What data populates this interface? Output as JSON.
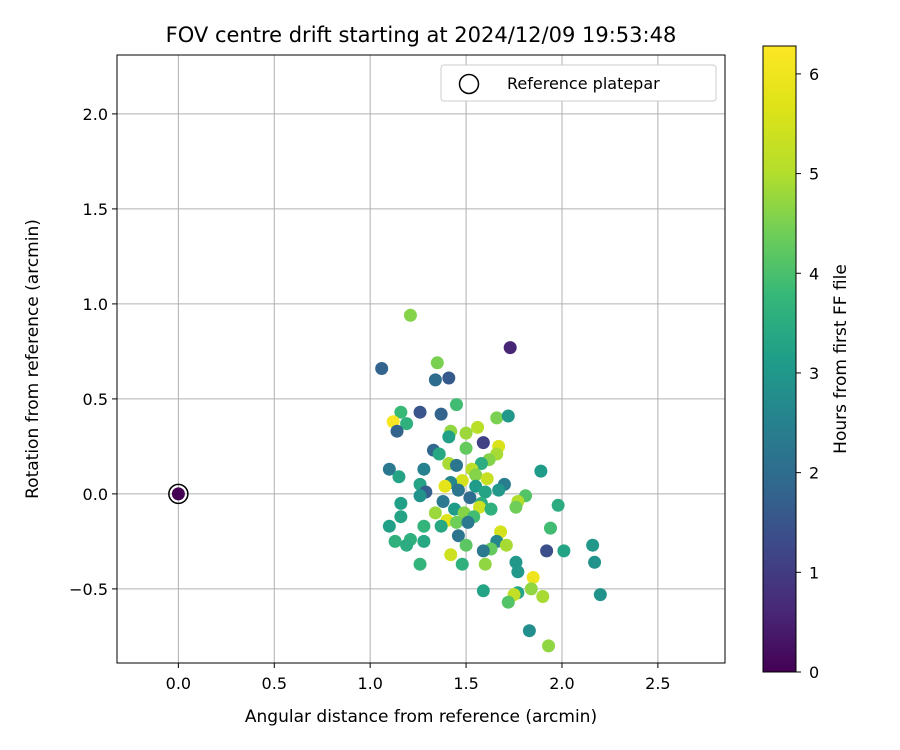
{
  "chart_data": {
    "type": "scatter",
    "title": "FOV centre drift starting at 2024/12/09 19:53:48",
    "xlabel": "Angular distance from reference (arcmin)",
    "ylabel": "Rotation from reference (arcmin)",
    "xlim": [
      -0.32,
      2.85
    ],
    "ylim": [
      -0.89,
      2.31
    ],
    "x_ticks": [
      0.0,
      0.5,
      1.0,
      1.5,
      2.0,
      2.5
    ],
    "x_tick_labels": [
      "0.0",
      "0.5",
      "1.0",
      "1.5",
      "2.0",
      "2.5"
    ],
    "y_ticks": [
      -0.5,
      0.0,
      0.5,
      1.0,
      1.5,
      2.0
    ],
    "y_tick_labels": [
      "−0.5",
      "0.0",
      "0.5",
      "1.0",
      "1.5",
      "2.0"
    ],
    "grid": true,
    "legend": {
      "placement": "top-right",
      "entries": [
        "Reference platepar"
      ]
    },
    "colorbar": {
      "label": "Hours from first FF file",
      "range": [
        0,
        6.28
      ],
      "ticks": [
        0,
        1,
        2,
        3,
        4,
        5,
        6
      ],
      "tick_labels": [
        "0",
        "1",
        "2",
        "3",
        "4",
        "5",
        "6"
      ],
      "colormap": "viridis"
    },
    "reference_point": {
      "x": 0.0,
      "y": 0.0,
      "c": 0.0
    },
    "points": [
      {
        "x": 1.21,
        "y": 0.94,
        "c": 4.6
      },
      {
        "x": 1.73,
        "y": 0.77,
        "c": 0.6
      },
      {
        "x": 1.35,
        "y": 0.69,
        "c": 4.5
      },
      {
        "x": 1.06,
        "y": 0.66,
        "c": 1.8
      },
      {
        "x": 1.34,
        "y": 0.6,
        "c": 2.0
      },
      {
        "x": 1.41,
        "y": 0.61,
        "c": 1.6
      },
      {
        "x": 1.45,
        "y": 0.47,
        "c": 3.9
      },
      {
        "x": 1.16,
        "y": 0.43,
        "c": 3.8
      },
      {
        "x": 1.26,
        "y": 0.43,
        "c": 1.5
      },
      {
        "x": 1.37,
        "y": 0.42,
        "c": 1.8
      },
      {
        "x": 1.66,
        "y": 0.4,
        "c": 4.5
      },
      {
        "x": 1.72,
        "y": 0.41,
        "c": 3.0
      },
      {
        "x": 1.12,
        "y": 0.38,
        "c": 6.2
      },
      {
        "x": 1.19,
        "y": 0.37,
        "c": 3.6
      },
      {
        "x": 1.14,
        "y": 0.33,
        "c": 1.8
      },
      {
        "x": 1.42,
        "y": 0.33,
        "c": 4.7
      },
      {
        "x": 1.5,
        "y": 0.32,
        "c": 4.8
      },
      {
        "x": 1.56,
        "y": 0.35,
        "c": 5.1
      },
      {
        "x": 1.41,
        "y": 0.3,
        "c": 3.2
      },
      {
        "x": 1.59,
        "y": 0.27,
        "c": 1.1
      },
      {
        "x": 1.67,
        "y": 0.25,
        "c": 5.6
      },
      {
        "x": 1.33,
        "y": 0.23,
        "c": 1.9
      },
      {
        "x": 1.5,
        "y": 0.24,
        "c": 4.3
      },
      {
        "x": 1.36,
        "y": 0.21,
        "c": 3.4
      },
      {
        "x": 1.66,
        "y": 0.21,
        "c": 4.9
      },
      {
        "x": 1.62,
        "y": 0.18,
        "c": 4.6
      },
      {
        "x": 1.41,
        "y": 0.16,
        "c": 4.9
      },
      {
        "x": 1.45,
        "y": 0.15,
        "c": 2.2
      },
      {
        "x": 1.58,
        "y": 0.16,
        "c": 3.5
      },
      {
        "x": 1.1,
        "y": 0.13,
        "c": 2.3
      },
      {
        "x": 1.28,
        "y": 0.13,
        "c": 2.5
      },
      {
        "x": 1.53,
        "y": 0.13,
        "c": 5.1
      },
      {
        "x": 1.55,
        "y": 0.1,
        "c": 4.6
      },
      {
        "x": 1.89,
        "y": 0.12,
        "c": 3.1
      },
      {
        "x": 1.15,
        "y": 0.09,
        "c": 3.3
      },
      {
        "x": 1.61,
        "y": 0.08,
        "c": 5.3
      },
      {
        "x": 1.48,
        "y": 0.07,
        "c": 5.5
      },
      {
        "x": 1.42,
        "y": 0.06,
        "c": 2.6
      },
      {
        "x": 1.26,
        "y": 0.05,
        "c": 3.3
      },
      {
        "x": 1.39,
        "y": 0.04,
        "c": 5.8
      },
      {
        "x": 1.55,
        "y": 0.04,
        "c": 3.1
      },
      {
        "x": 1.7,
        "y": 0.05,
        "c": 2.4
      },
      {
        "x": 1.46,
        "y": 0.02,
        "c": 2.2
      },
      {
        "x": 1.29,
        "y": 0.01,
        "c": 1.7
      },
      {
        "x": 1.26,
        "y": -0.01,
        "c": 2.9
      },
      {
        "x": 1.6,
        "y": 0.01,
        "c": 3.3
      },
      {
        "x": 1.67,
        "y": 0.02,
        "c": 3.0
      },
      {
        "x": 1.81,
        "y": -0.01,
        "c": 4.1
      },
      {
        "x": 1.52,
        "y": -0.02,
        "c": 2.0
      },
      {
        "x": 1.38,
        "y": -0.04,
        "c": 2.3
      },
      {
        "x": 1.58,
        "y": -0.05,
        "c": 3.5
      },
      {
        "x": 1.77,
        "y": -0.04,
        "c": 5.0
      },
      {
        "x": 1.16,
        "y": -0.05,
        "c": 3.2
      },
      {
        "x": 1.98,
        "y": -0.06,
        "c": 3.5
      },
      {
        "x": 1.57,
        "y": -0.07,
        "c": 5.4
      },
      {
        "x": 1.44,
        "y": -0.08,
        "c": 3.1
      },
      {
        "x": 1.63,
        "y": -0.08,
        "c": 3.6
      },
      {
        "x": 1.76,
        "y": -0.07,
        "c": 4.4
      },
      {
        "x": 1.34,
        "y": -0.1,
        "c": 4.8
      },
      {
        "x": 1.49,
        "y": -0.1,
        "c": 4.6
      },
      {
        "x": 1.16,
        "y": -0.12,
        "c": 3.3
      },
      {
        "x": 1.54,
        "y": -0.12,
        "c": 3.9
      },
      {
        "x": 1.4,
        "y": -0.14,
        "c": 5.7
      },
      {
        "x": 1.45,
        "y": -0.15,
        "c": 4.4
      },
      {
        "x": 1.51,
        "y": -0.15,
        "c": 2.3
      },
      {
        "x": 1.37,
        "y": -0.17,
        "c": 3.4
      },
      {
        "x": 1.1,
        "y": -0.17,
        "c": 3.2
      },
      {
        "x": 1.28,
        "y": -0.17,
        "c": 3.7
      },
      {
        "x": 1.94,
        "y": -0.18,
        "c": 3.9
      },
      {
        "x": 1.46,
        "y": -0.22,
        "c": 2.2
      },
      {
        "x": 1.68,
        "y": -0.2,
        "c": 5.5
      },
      {
        "x": 1.21,
        "y": -0.24,
        "c": 3.6
      },
      {
        "x": 1.13,
        "y": -0.25,
        "c": 3.6
      },
      {
        "x": 1.28,
        "y": -0.25,
        "c": 3.4
      },
      {
        "x": 1.66,
        "y": -0.25,
        "c": 2.6
      },
      {
        "x": 1.5,
        "y": -0.27,
        "c": 4.2
      },
      {
        "x": 1.71,
        "y": -0.27,
        "c": 4.9
      },
      {
        "x": 1.19,
        "y": -0.27,
        "c": 3.5
      },
      {
        "x": 1.63,
        "y": -0.29,
        "c": 4.3
      },
      {
        "x": 2.16,
        "y": -0.27,
        "c": 3.0
      },
      {
        "x": 1.59,
        "y": -0.3,
        "c": 2.3
      },
      {
        "x": 1.92,
        "y": -0.3,
        "c": 1.4
      },
      {
        "x": 2.01,
        "y": -0.3,
        "c": 3.3
      },
      {
        "x": 1.42,
        "y": -0.32,
        "c": 5.4
      },
      {
        "x": 1.76,
        "y": -0.36,
        "c": 3.0
      },
      {
        "x": 1.48,
        "y": -0.37,
        "c": 3.6
      },
      {
        "x": 1.26,
        "y": -0.37,
        "c": 3.7
      },
      {
        "x": 1.6,
        "y": -0.37,
        "c": 4.7
      },
      {
        "x": 2.17,
        "y": -0.36,
        "c": 2.9
      },
      {
        "x": 1.77,
        "y": -0.41,
        "c": 3.0
      },
      {
        "x": 1.85,
        "y": -0.44,
        "c": 6.0
      },
      {
        "x": 1.84,
        "y": -0.5,
        "c": 4.7
      },
      {
        "x": 1.59,
        "y": -0.51,
        "c": 3.3
      },
      {
        "x": 1.77,
        "y": -0.52,
        "c": 3.3
      },
      {
        "x": 1.75,
        "y": -0.53,
        "c": 5.2
      },
      {
        "x": 1.9,
        "y": -0.54,
        "c": 4.9
      },
      {
        "x": 2.2,
        "y": -0.53,
        "c": 2.9
      },
      {
        "x": 1.72,
        "y": -0.57,
        "c": 4.1
      },
      {
        "x": 1.83,
        "y": -0.72,
        "c": 2.8
      },
      {
        "x": 1.93,
        "y": -0.8,
        "c": 4.7
      }
    ]
  }
}
